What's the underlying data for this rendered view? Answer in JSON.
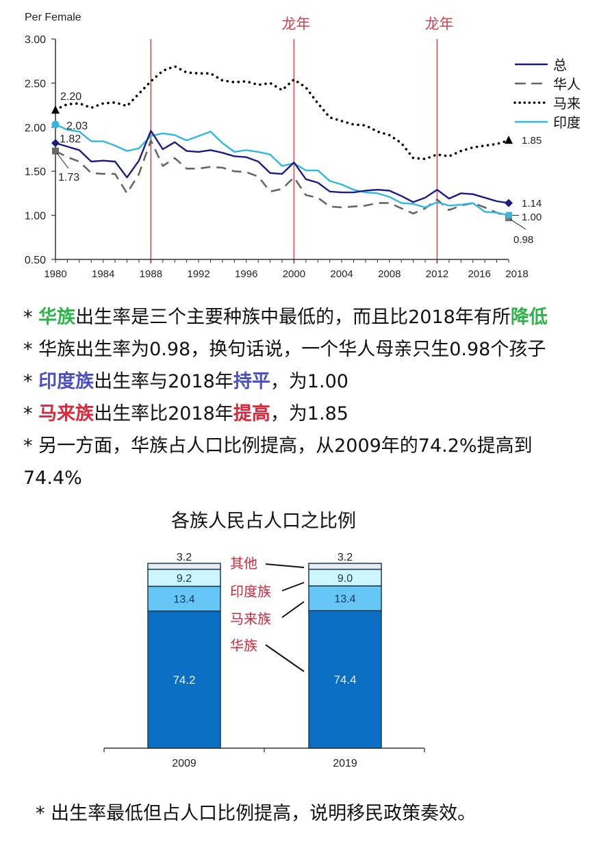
{
  "line_chart": {
    "ylabel": "Per Female",
    "dragon_label": "龙年",
    "legend": [
      {
        "key": "total",
        "label": "总"
      },
      {
        "key": "chinese",
        "label": "华人"
      },
      {
        "key": "malay",
        "label": "马来"
      },
      {
        "key": "indian",
        "label": "印度"
      }
    ],
    "start_labels": {
      "malay": "2.20",
      "indian": "2.03",
      "total": "1.82",
      "chinese": "1.73"
    },
    "end_labels": {
      "malay": "1.85",
      "total": "1.14",
      "indian": "1.00",
      "chinese": "0.98"
    }
  },
  "notes": [
    {
      "parts": [
        {
          "t": "* ",
          "c": ""
        },
        {
          "t": "华族",
          "c": "hl-green"
        },
        {
          "t": "出生率是三个主要种族中最低的，而且比2018年有所",
          "c": ""
        },
        {
          "t": "降低",
          "c": "hl-green"
        }
      ]
    },
    {
      "parts": [
        {
          "t": "* 华族出生率为0.98，换句话说，一个华人母亲只生0.98个孩子",
          "c": ""
        }
      ]
    },
    {
      "parts": [
        {
          "t": "* ",
          "c": ""
        },
        {
          "t": "印度族",
          "c": "hl-blue"
        },
        {
          "t": "出生率与2018年",
          "c": ""
        },
        {
          "t": "持平",
          "c": "hl-blue"
        },
        {
          "t": "，为1.00",
          "c": ""
        }
      ]
    },
    {
      "parts": [
        {
          "t": "* ",
          "c": ""
        },
        {
          "t": "马来族",
          "c": "hl-red"
        },
        {
          "t": "出生率比2018年",
          "c": ""
        },
        {
          "t": "提高",
          "c": "hl-red"
        },
        {
          "t": "，为1.85",
          "c": ""
        }
      ]
    },
    {
      "parts": [
        {
          "t": "* 另一方面，华族占人口比例提高，从2009年的74.2%提高到",
          "c": ""
        }
      ]
    },
    {
      "parts": [
        {
          "t": "74.4%",
          "c": ""
        }
      ]
    }
  ],
  "bar_chart_ui": {
    "title": "各族人民占人口之比例",
    "annotations": [
      "其他",
      "印度族",
      "马来族",
      "华族"
    ]
  },
  "footer": {
    "text": "* 出生率最低但占人口比例提高，说明移民政策奏效。"
  },
  "colors": {
    "total": "#1a1a80",
    "chinese": "#666666",
    "malay": "#000000",
    "indian": "#2fb7e0",
    "dragon_line": "#d0424f",
    "bar_chinese": "#0a6ec2",
    "bar_malay": "#66c6f5",
    "bar_indian": "#ccf6ff",
    "bar_others": "#e8ecf4",
    "annotation_red": "#d0283a"
  },
  "chart_data": [
    {
      "type": "line",
      "title": "",
      "xlabel": "",
      "ylabel": "Per Female",
      "ylim": [
        0.5,
        3.0
      ],
      "yticks": [
        "0.50",
        "1.00",
        "1.50",
        "2.00",
        "2.50",
        "3.00"
      ],
      "xticks": [
        "1980",
        "1984",
        "1988",
        "1992",
        "1996",
        "2000",
        "2004",
        "2008",
        "2012",
        "2016",
        "2018"
      ],
      "x": [
        1980,
        1981,
        1982,
        1983,
        1984,
        1985,
        1986,
        1987,
        1988,
        1989,
        1990,
        1991,
        1992,
        1993,
        1994,
        1995,
        1996,
        1997,
        1998,
        1999,
        2000,
        2001,
        2002,
        2003,
        2004,
        2005,
        2006,
        2007,
        2008,
        2009,
        2010,
        2011,
        2012,
        2013,
        2014,
        2015,
        2016,
        2017,
        2018
      ],
      "series": [
        {
          "name": "总",
          "style": "solid",
          "values": [
            1.82,
            1.78,
            1.74,
            1.61,
            1.62,
            1.61,
            1.43,
            1.62,
            1.96,
            1.75,
            1.83,
            1.73,
            1.72,
            1.74,
            1.71,
            1.67,
            1.66,
            1.61,
            1.48,
            1.47,
            1.6,
            1.41,
            1.37,
            1.27,
            1.26,
            1.26,
            1.28,
            1.29,
            1.28,
            1.22,
            1.15,
            1.2,
            1.29,
            1.19,
            1.25,
            1.24,
            1.2,
            1.16,
            1.14
          ]
        },
        {
          "name": "华人",
          "style": "dashed",
          "values": [
            1.73,
            1.66,
            1.61,
            1.48,
            1.47,
            1.47,
            1.25,
            1.47,
            1.85,
            1.56,
            1.65,
            1.53,
            1.53,
            1.55,
            1.54,
            1.5,
            1.49,
            1.44,
            1.27,
            1.3,
            1.43,
            1.23,
            1.2,
            1.1,
            1.09,
            1.1,
            1.11,
            1.14,
            1.14,
            1.08,
            1.02,
            1.08,
            1.18,
            1.06,
            1.11,
            1.14,
            1.09,
            1.03,
            0.98
          ]
        },
        {
          "name": "马来",
          "style": "dotted",
          "values": [
            2.2,
            2.26,
            2.27,
            2.22,
            2.27,
            2.28,
            2.24,
            2.38,
            2.52,
            2.64,
            2.69,
            2.62,
            2.61,
            2.61,
            2.53,
            2.51,
            2.52,
            2.48,
            2.5,
            2.42,
            2.54,
            2.45,
            2.27,
            2.11,
            2.07,
            2.03,
            2.02,
            1.95,
            1.91,
            1.82,
            1.65,
            1.64,
            1.69,
            1.67,
            1.73,
            1.77,
            1.79,
            1.81,
            1.85
          ]
        },
        {
          "name": "印度",
          "style": "solid",
          "values": [
            2.03,
            1.97,
            1.95,
            1.84,
            1.84,
            1.79,
            1.73,
            1.76,
            1.9,
            1.93,
            1.91,
            1.85,
            1.9,
            1.95,
            1.82,
            1.72,
            1.74,
            1.72,
            1.69,
            1.56,
            1.59,
            1.51,
            1.51,
            1.39,
            1.35,
            1.29,
            1.26,
            1.25,
            1.21,
            1.14,
            1.13,
            1.09,
            1.15,
            1.11,
            1.12,
            1.14,
            1.04,
            1.03,
            1.0
          ]
        }
      ],
      "annotations": [
        {
          "text": "龙年",
          "x": 1988,
          "type": "vertical-line"
        },
        {
          "text": "龙年",
          "x": 2000,
          "type": "vertical-line"
        },
        {
          "text": "龙年",
          "x": 2012,
          "type": "vertical-line"
        }
      ],
      "legend_position": "right",
      "grid": false
    },
    {
      "type": "bar",
      "stacked": true,
      "title": "各族人民占人口之比例",
      "categories": [
        "2009",
        "2019"
      ],
      "series": [
        {
          "name": "华族",
          "values": [
            74.2,
            74.4
          ]
        },
        {
          "name": "马来族",
          "values": [
            13.4,
            13.4
          ]
        },
        {
          "name": "印度族",
          "values": [
            9.2,
            9.0
          ]
        },
        {
          "name": "其他",
          "values": [
            3.2,
            3.2
          ]
        }
      ],
      "xlabel": "",
      "ylabel": "",
      "ylim": [
        0,
        100
      ],
      "grid": false
    }
  ]
}
